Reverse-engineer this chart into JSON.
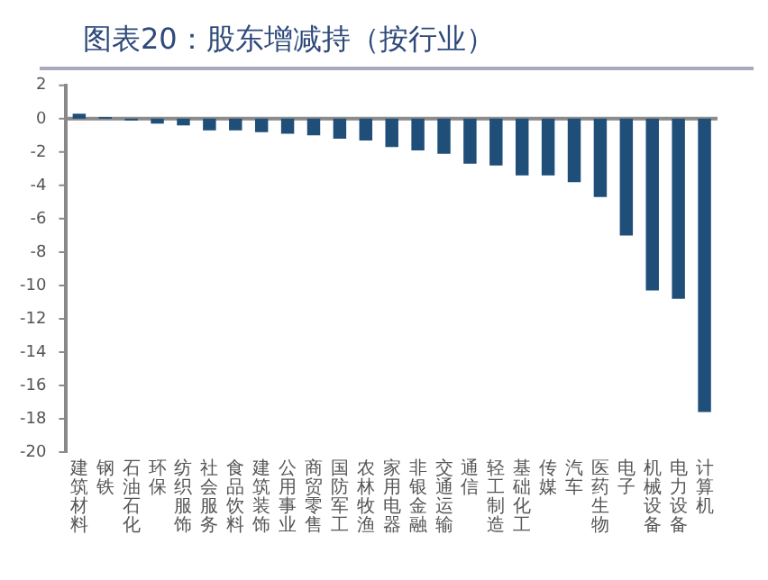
{
  "chart_data": {
    "type": "bar",
    "title": "图表20：股东增减持（按行业）",
    "categories": [
      "建筑材料",
      "钢铁",
      "石油石化",
      "环保",
      "纺织服饰",
      "社会服务",
      "食品饮料",
      "建筑装饰",
      "公用事业",
      "商贸零售",
      "国防军工",
      "农林牧渔",
      "家用电器",
      "非银金融",
      "交通运输",
      "通信",
      "轻工制造",
      "基础化工",
      "传媒",
      "汽车",
      "医药生物",
      "电子",
      "机械设备",
      "电力设备",
      "计算机"
    ],
    "values": [
      0.3,
      0.1,
      -0.1,
      -0.3,
      -0.4,
      -0.7,
      -0.7,
      -0.8,
      -0.9,
      -1.0,
      -1.2,
      -1.3,
      -1.7,
      -1.9,
      -2.1,
      -2.7,
      -2.8,
      -3.4,
      -3.4,
      -3.8,
      -4.7,
      -7.0,
      -10.3,
      -10.8,
      -17.6
    ],
    "color": "#1f4e79",
    "ylim": [
      -20,
      2
    ],
    "yticks": [
      -20,
      -18,
      -16,
      -14,
      -12,
      -10,
      -8,
      -6,
      -4,
      -2,
      0,
      2
    ],
    "grid": false,
    "ref_lines": [
      {
        "axis": "y",
        "value": 0,
        "color": "#8a8a8a"
      }
    ]
  }
}
